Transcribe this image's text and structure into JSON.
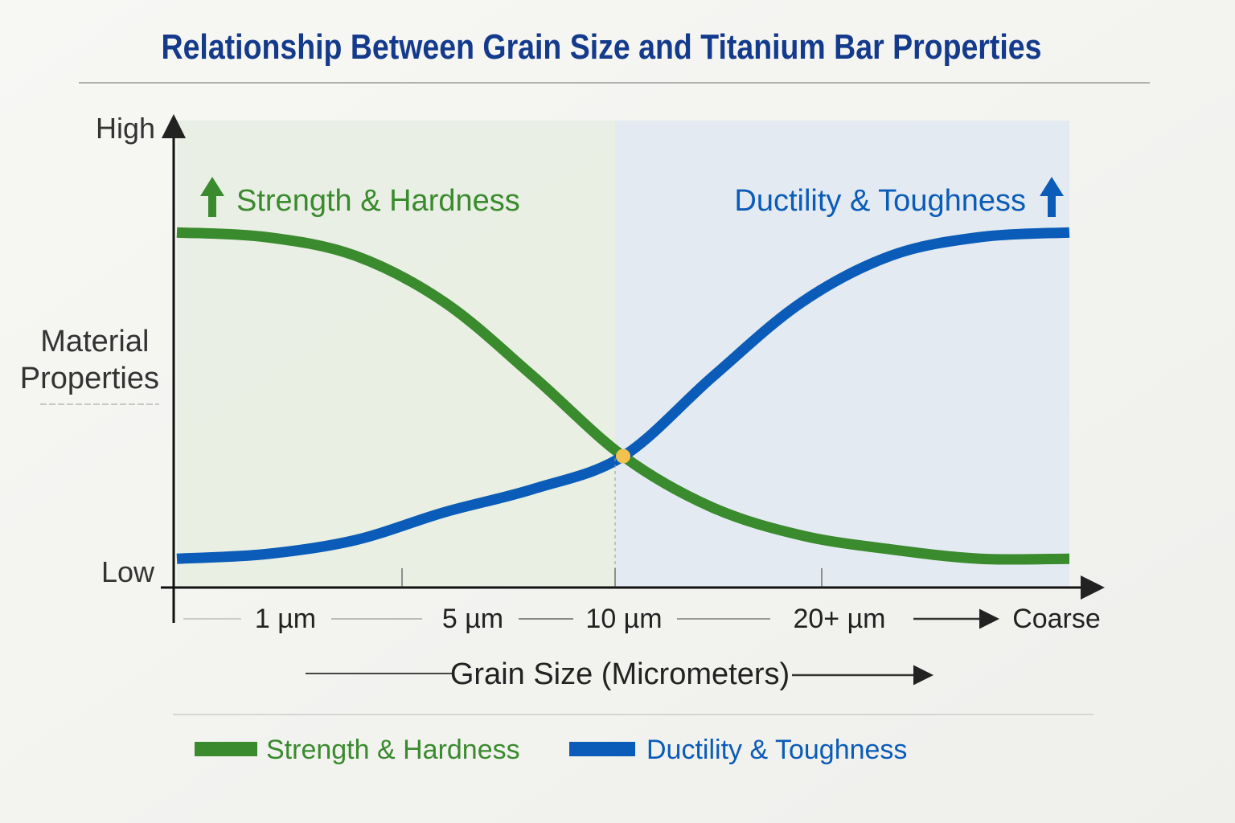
{
  "chart_data": {
    "type": "line",
    "title": "Relationship Between Grain Size and Titanium Bar Properties",
    "xlabel": "Grain Size (Micrometers)",
    "ylabel": "Material Properties",
    "y_ticks": {
      "high": "High",
      "low": "Low"
    },
    "x_tick_labels": [
      "1 µm",
      "5 µm",
      "10 µm",
      "20+ µm",
      "Coarse"
    ],
    "grid": false,
    "legend_placement": "bottom",
    "series": [
      {
        "name": "Strength & Hardness",
        "color": "#3a8a2e",
        "values": [
          0.76,
          0.75,
          0.71,
          0.61,
          0.45,
          0.28,
          0.17,
          0.11,
          0.08,
          0.06,
          0.06
        ]
      },
      {
        "name": "Ductility & Toughness",
        "color": "#0a5cb8",
        "values": [
          0.06,
          0.07,
          0.1,
          0.16,
          0.21,
          0.28,
          0.45,
          0.61,
          0.71,
          0.75,
          0.76
        ]
      }
    ],
    "annotations": {
      "left": "Strength & Hardness",
      "right": "Ductility & Toughness",
      "intersection_marker_color": "#f2c14e"
    }
  }
}
